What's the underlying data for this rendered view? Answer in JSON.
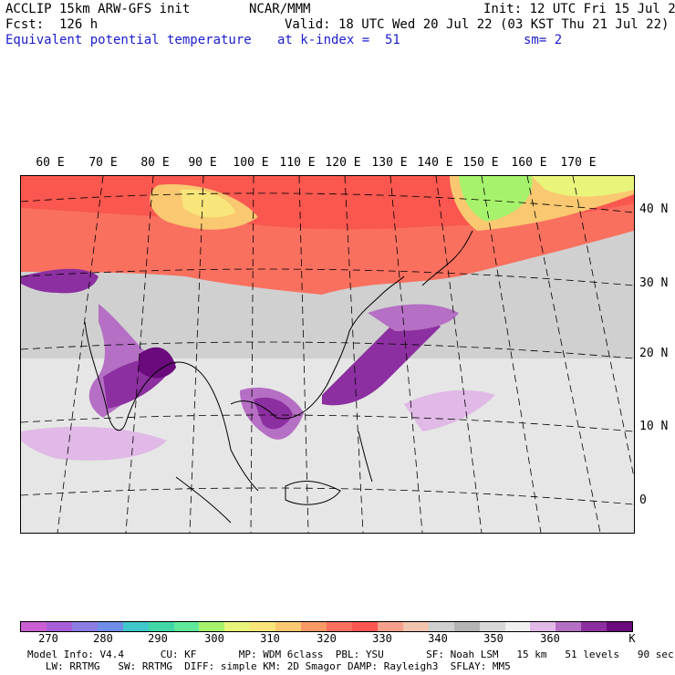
{
  "header": {
    "model_title": "ACCLIP 15km ARW-GFS init",
    "org": "NCAR/MMM",
    "init": "Init: 12 UTC Fri 15 Jul 22",
    "fcst": "Fcst:  126 h",
    "valid": "Valid: 18 UTC Wed 20 Jul 22 (03 KST Thu 21 Jul 22)",
    "field": "Equivalent potential temperature",
    "level": "at k-index =  51",
    "smooth": "sm= 2"
  },
  "map": {
    "lon_labels": [
      "60 E",
      "70 E",
      "80 E",
      "90 E",
      "100 E",
      "110 E",
      "120 E",
      "130 E",
      "140 E",
      "150 E",
      "160 E",
      "170 E"
    ],
    "lat_labels": [
      "40 N",
      "30 N",
      "20 N",
      "10 N",
      "0"
    ]
  },
  "colorbar": {
    "colors": [
      "#c95fd3",
      "#a95fd8",
      "#8a7ee4",
      "#6f8ee8",
      "#3fc7cb",
      "#3fd7a6",
      "#5fe89a",
      "#a6f26c",
      "#e9f57a",
      "#f8e67a",
      "#f9c870",
      "#f99966",
      "#f9705f",
      "#f9574f",
      "#f6a08b",
      "#f3c5b0",
      "#cfcfcf",
      "#b4b4b4",
      "#d8d8d8",
      "#f0f0f0",
      "#e0b9e6",
      "#b56fc4",
      "#8c2fa0",
      "#6a0a7c"
    ],
    "labels": [
      "270",
      "280",
      "290",
      "300",
      "310",
      "320",
      "330",
      "340",
      "350",
      "360",
      "K"
    ],
    "units": "K"
  },
  "model_info": {
    "line1": "Model Info: V4.4      CU: KF       MP: WDM 6class  PBL: YSU       SF: Noah LSM   15 km   51 levels   90 sec",
    "line2": "   LW: RRTMG   SW: RRTMG  DIFF: simple KM: 2D Smagor DAMP: Rayleigh3  SFLAY: MM5"
  }
}
